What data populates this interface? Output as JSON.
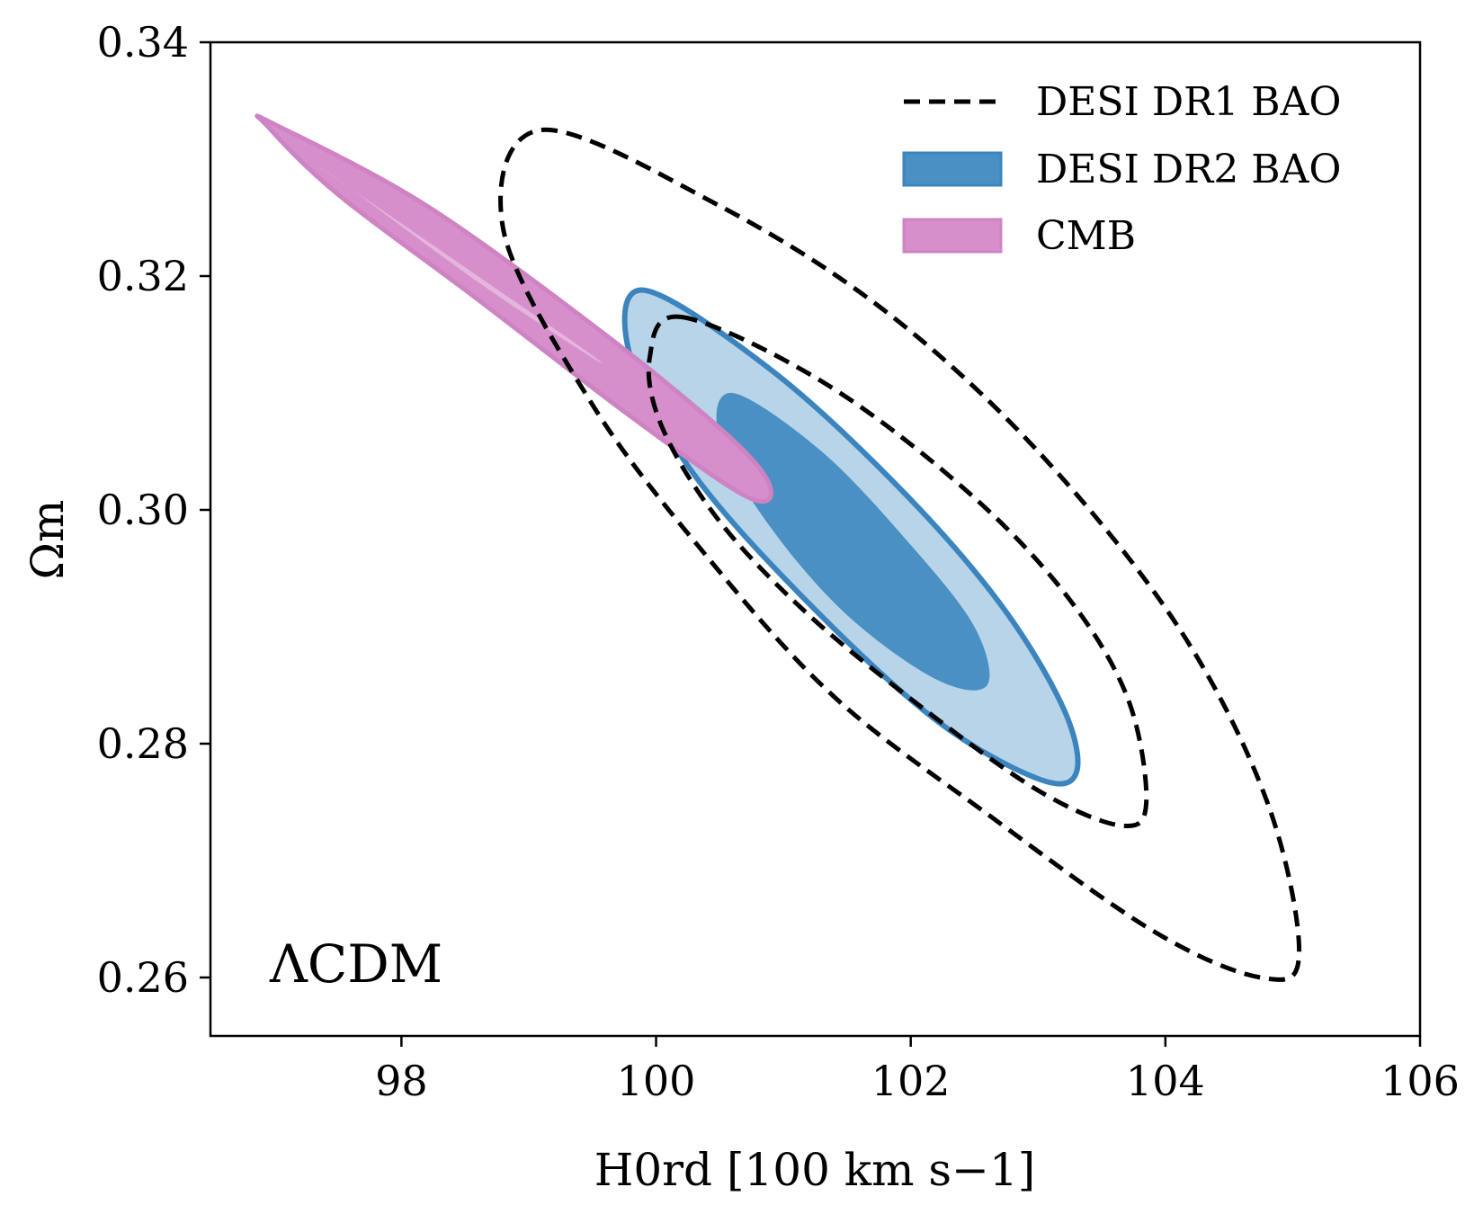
{
  "chart_data": {
    "type": "contour",
    "xlabel": "H0rd [100 km s−1]",
    "ylabel": "Ωm",
    "annotation": "ΛCDM",
    "xlim": [
      96.5,
      106
    ],
    "ylim": [
      0.255,
      0.34
    ],
    "xticks": [
      98,
      100,
      102,
      104,
      106
    ],
    "yticks": [
      0.26,
      0.28,
      0.3,
      0.32,
      0.34
    ],
    "xtick_labels": [
      "98",
      "100",
      "102",
      "104",
      "106"
    ],
    "ytick_labels": [
      "0.26",
      "0.28",
      "0.30",
      "0.32",
      "0.34"
    ],
    "legend": {
      "position": "top-right",
      "entries": [
        {
          "label": "DESI DR1 BAO",
          "style": "dashed",
          "color": "#000000"
        },
        {
          "label": "DESI DR2 BAO",
          "style": "filled",
          "color": "#4a90c2",
          "edge": "#3b84bd"
        },
        {
          "label": "CMB",
          "style": "filled",
          "color": "#d68fca",
          "edge": "#cf83c3"
        }
      ]
    },
    "series": [
      {
        "name": "DESI DR1 BAO",
        "style": "dashed",
        "color": "#000000",
        "contours": [
          {
            "level": "1sigma",
            "points": [
              [
                100.2,
                0.3165
              ],
              [
                101.3,
                0.311
              ],
              [
                102.4,
                0.302
              ],
              [
                103.2,
                0.293
              ],
              [
                103.7,
                0.284
              ],
              [
                103.85,
                0.275
              ],
              [
                103.65,
                0.273
              ],
              [
                103.0,
                0.276
              ],
              [
                102.1,
                0.283
              ],
              [
                101.2,
                0.291
              ],
              [
                100.5,
                0.299
              ],
              [
                100.05,
                0.307
              ],
              [
                99.95,
                0.313
              ],
              [
                100.2,
                0.3165
              ]
            ]
          },
          {
            "level": "2sigma",
            "points": [
              [
                99.1,
                0.3325
              ],
              [
                100.5,
                0.326
              ],
              [
                101.8,
                0.317
              ],
              [
                103.0,
                0.305
              ],
              [
                104.1,
                0.29
              ],
              [
                104.8,
                0.275
              ],
              [
                105.05,
                0.262
              ],
              [
                104.75,
                0.26
              ],
              [
                103.9,
                0.264
              ],
              [
                102.6,
                0.274
              ],
              [
                101.4,
                0.284
              ],
              [
                100.4,
                0.296
              ],
              [
                99.5,
                0.309
              ],
              [
                98.8,
                0.324
              ],
              [
                99.1,
                0.3325
              ]
            ]
          }
        ]
      },
      {
        "name": "DESI DR2 BAO",
        "style": "filled",
        "color": "#4a90c2",
        "contours": [
          {
            "level": "1sigma",
            "color": "#4a90c2",
            "points": [
              [
                100.6,
                0.31
              ],
              [
                101.3,
                0.305
              ],
              [
                102.0,
                0.297
              ],
              [
                102.5,
                0.29
              ],
              [
                102.6,
                0.285
              ],
              [
                102.2,
                0.2855
              ],
              [
                101.5,
                0.291
              ],
              [
                100.9,
                0.2985
              ],
              [
                100.5,
                0.306
              ],
              [
                100.6,
                0.31
              ]
            ]
          },
          {
            "level": "2sigma",
            "color": "#b7d4e9",
            "edge": "#3b84bd",
            "points": [
              [
                99.9,
                0.3188
              ],
              [
                100.9,
                0.312
              ],
              [
                101.9,
                0.302
              ],
              [
                102.7,
                0.292
              ],
              [
                103.2,
                0.283
              ],
              [
                103.3,
                0.2775
              ],
              [
                103.0,
                0.277
              ],
              [
                102.2,
                0.282
              ],
              [
                101.2,
                0.292
              ],
              [
                100.3,
                0.303
              ],
              [
                99.8,
                0.313
              ],
              [
                99.9,
                0.3188
              ]
            ]
          }
        ]
      },
      {
        "name": "CMB",
        "style": "filled",
        "color": "#d68fca",
        "contours": [
          {
            "level": "2sigma",
            "color": "#d68fca",
            "edge": "#cf83c3",
            "points": [
              [
                97.0,
                0.333
              ],
              [
                98.2,
                0.326
              ],
              [
                99.6,
                0.315
              ],
              [
                100.6,
                0.306
              ],
              [
                100.9,
                0.3018
              ],
              [
                100.7,
                0.3012
              ],
              [
                99.8,
                0.308
              ],
              [
                98.6,
                0.318
              ],
              [
                97.5,
                0.327
              ],
              [
                96.95,
                0.3328
              ],
              [
                97.0,
                0.333
              ]
            ]
          },
          {
            "level": "1sigma",
            "color": "#e5b5dd",
            "points": [
              [
                97.4,
                0.329
              ],
              [
                98.4,
                0.3215
              ],
              [
                99.4,
                0.314
              ],
              [
                99.5,
                0.313
              ],
              [
                98.6,
                0.3195
              ],
              [
                97.6,
                0.3275
              ],
              [
                97.4,
                0.329
              ]
            ]
          }
        ]
      }
    ]
  }
}
